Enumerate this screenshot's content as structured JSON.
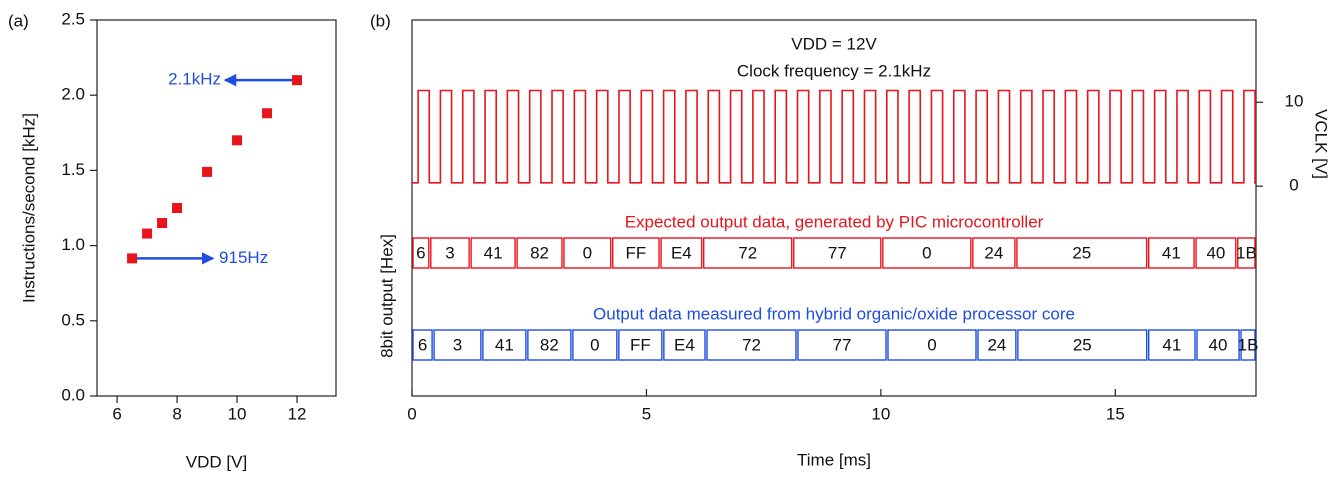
{
  "chart_data": [
    {
      "type": "scatter",
      "panel": "(a)",
      "x_label": "VDD [V]",
      "y_label": "Instructions/second [kHz]",
      "x": [
        6.5,
        7,
        7.5,
        8,
        9,
        10,
        11,
        12
      ],
      "values": [
        0.915,
        1.08,
        1.15,
        1.25,
        1.49,
        1.7,
        1.88,
        2.1
      ],
      "color": "#e8141c",
      "xlim": [
        5.33,
        13.3
      ],
      "xticks": [
        6,
        8,
        10,
        12
      ],
      "ylim": [
        0,
        2.5
      ],
      "yticks": [
        {
          "value": 0,
          "label": "0.0"
        },
        0.5,
        {
          "value": 1,
          "label": "1.0"
        },
        1.5,
        {
          "value": 2,
          "label": "2.0"
        },
        2.5
      ],
      "annotation_color": "#1f4de0",
      "annotations": [
        {
          "text": "2.1kHz",
          "x": 12,
          "y": 2.1,
          "x_end": 9.6
        },
        {
          "text": "915Hz",
          "x": 6.5,
          "y": 0.915,
          "x_end": 9.2
        }
      ]
    },
    {
      "type": "timing",
      "panel": "(b)",
      "title": "VDD = 12V",
      "subtitle": "Clock frequency = 2.1kHz",
      "x_label": "Time [ms]",
      "y_label": "8bit output [Hex]",
      "y2_label": "VCLK [V]",
      "xlim": [
        0,
        18
      ],
      "xticks": [
        0,
        5,
        10,
        15
      ],
      "y2lim": [
        -25,
        19.8
      ],
      "y2ticks": [
        0,
        10
      ],
      "clock": {
        "color": "#e8141c",
        "start": 0.13,
        "period": 0.476,
        "high": 11.4,
        "low": 0.4
      },
      "buses": [
        {
          "name": "Expected output data, generated by PIC microcontroller",
          "color": "#e8141c",
          "labels": [
            "6",
            "3",
            "41",
            "82",
            "0",
            "FF",
            "E4",
            "72",
            "77",
            "0",
            "24",
            "25",
            "41",
            "40",
            "1B"
          ],
          "edges": [
            0,
            0.38,
            1.24,
            2.22,
            3.22,
            4.26,
            5.29,
            6.2,
            8.12,
            10.02,
            11.94,
            12.88,
            15.69,
            16.7,
            17.59,
            18
          ]
        },
        {
          "name": "Output data measured from hybrid organic/oxide processor core",
          "color": "#1f4de0",
          "labels": [
            "6",
            "3",
            "41",
            "82",
            "0",
            "FF",
            "E4",
            "72",
            "77",
            "0",
            "24",
            "25",
            "41",
            "40",
            "1B"
          ],
          "edges": [
            0,
            0.45,
            1.49,
            2.45,
            3.41,
            4.39,
            5.35,
            6.27,
            8.21,
            10.13,
            12.05,
            12.9,
            15.69,
            16.72,
            17.66,
            18
          ]
        }
      ]
    }
  ]
}
